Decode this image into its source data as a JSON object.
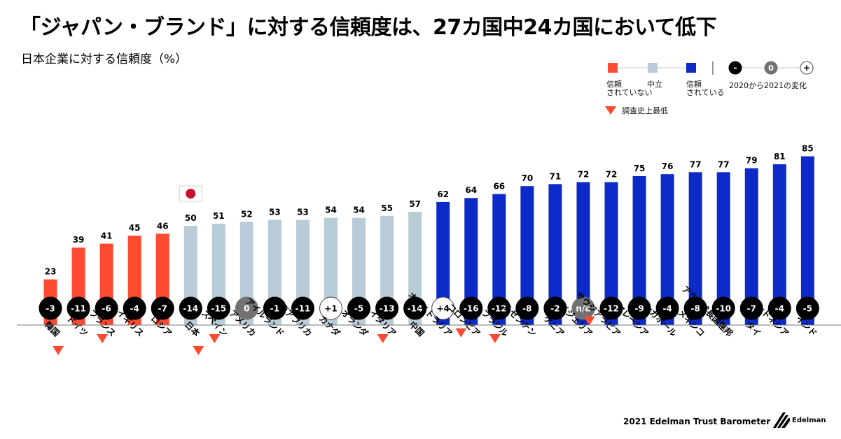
{
  "chart_data": {
    "type": "bar",
    "title": "「ジャパン・ブランド」に対する信頼度は、27カ国中24カ国において低下",
    "subtitle": "日本企業に対する信頼度（%）",
    "categories": [
      "韓国",
      "ドイツ",
      "フランス",
      "イギリス",
      "ロシア",
      "日本",
      "スペイン",
      "アメリカ",
      "アイルランド",
      "南アフリカ",
      "カナダ",
      "オランダ",
      "イタリア",
      "中国",
      "オーストラリア",
      "コロンビア",
      "ブラジル",
      "アルゼンチン",
      "ケニア",
      "ナイジェリア",
      "サウジアラビア",
      "マレーシア",
      "シンガポール",
      "メキシコ",
      "アラブ首長国連邦",
      "タイ",
      "インドネシア",
      "インド"
    ],
    "values": [
      23,
      39,
      41,
      45,
      46,
      50,
      51,
      52,
      53,
      53,
      54,
      54,
      55,
      57,
      62,
      64,
      66,
      70,
      71,
      72,
      72,
      75,
      76,
      77,
      77,
      79,
      81,
      85
    ],
    "changes": [
      "-3",
      "-11",
      "-6",
      "-4",
      "-7",
      "-14",
      "-15",
      "0",
      "-1",
      "-11",
      "+1",
      "-5",
      "-13",
      "-14",
      "+4",
      "-16",
      "-12",
      "-8",
      "-2",
      "n/a",
      "-12",
      "-9",
      "-4",
      "-8",
      "-10",
      "-7",
      "-4",
      "-5"
    ],
    "record_low": [
      true,
      false,
      true,
      false,
      false,
      true,
      true,
      false,
      false,
      false,
      false,
      false,
      true,
      false,
      false,
      true,
      true,
      false,
      false,
      false,
      true,
      false,
      false,
      false,
      false,
      false,
      false,
      false
    ],
    "trust_levels": [
      "distrust",
      "distrust",
      "distrust",
      "distrust",
      "distrust",
      "neutral",
      "neutral",
      "neutral",
      "neutral",
      "neutral",
      "neutral",
      "neutral",
      "neutral",
      "neutral",
      "trust",
      "trust",
      "trust",
      "trust",
      "trust",
      "trust",
      "trust",
      "trust",
      "trust",
      "trust",
      "trust",
      "trust",
      "trust",
      "trust"
    ],
    "ylim": [
      0,
      90
    ],
    "xlabel": "",
    "ylabel": ""
  },
  "highlight": {
    "category": "日本",
    "icon": "japan-flag-icon"
  },
  "legend": {
    "trust_scale": [
      {
        "label": "信頼\nされていない",
        "color": "#ff4a32"
      },
      {
        "label": "中立",
        "color": "#b7ccd6"
      },
      {
        "label": "信頼\nされている",
        "color": "#0b2ac8"
      }
    ],
    "change_scale": {
      "items": [
        "-",
        "0",
        "+"
      ],
      "label": "2020から2021の変化"
    },
    "record_low_label": "調査史上最低"
  },
  "colors": {
    "distrust": "#ff4a32",
    "neutral": "#b7ccd6",
    "trust": "#0b2ac8",
    "marker": "#ff4a32",
    "neg": "#000000",
    "zero": "#727272",
    "pos": "#ffffff"
  },
  "footer": {
    "text": "2021 Edelman Trust  Barometer",
    "logo": "Edelman"
  }
}
